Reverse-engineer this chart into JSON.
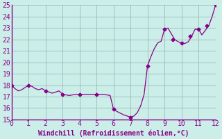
{
  "xlabel": "Windchill (Refroidissement éolien,°C)",
  "xlim": [
    0,
    12
  ],
  "ylim": [
    15,
    25
  ],
  "xticks": [
    0,
    1,
    2,
    3,
    4,
    5,
    6,
    7,
    8,
    9,
    10,
    11,
    12
  ],
  "yticks": [
    15,
    16,
    17,
    18,
    19,
    20,
    21,
    22,
    23,
    24,
    25
  ],
  "line_color": "#880088",
  "bg_color": "#cceee8",
  "grid_color": "#99bbbb",
  "axis_color": "#880088",
  "x": [
    0.0,
    0.2,
    0.4,
    0.6,
    0.8,
    1.0,
    1.2,
    1.4,
    1.6,
    1.8,
    2.0,
    2.2,
    2.4,
    2.6,
    2.8,
    3.0,
    3.2,
    3.4,
    3.6,
    3.8,
    4.0,
    4.2,
    4.4,
    4.6,
    4.8,
    5.0,
    5.2,
    5.4,
    5.6,
    5.8,
    6.0,
    6.2,
    6.4,
    6.6,
    6.8,
    7.0,
    7.2,
    7.4,
    7.6,
    7.8,
    8.0,
    8.2,
    8.4,
    8.6,
    8.8,
    9.0,
    9.2,
    9.4,
    9.6,
    9.8,
    10.0,
    10.2,
    10.4,
    10.6,
    10.8,
    11.0,
    11.2,
    11.4,
    11.6,
    11.8,
    12.0
  ],
  "y": [
    18.0,
    17.7,
    17.5,
    17.6,
    17.8,
    18.0,
    17.9,
    17.7,
    17.6,
    17.7,
    17.5,
    17.4,
    17.3,
    17.4,
    17.5,
    17.2,
    17.15,
    17.1,
    17.15,
    17.2,
    17.2,
    17.2,
    17.2,
    17.2,
    17.2,
    17.2,
    17.2,
    17.2,
    17.15,
    17.1,
    15.9,
    15.7,
    15.55,
    15.4,
    15.3,
    15.2,
    15.3,
    15.6,
    16.2,
    17.2,
    19.7,
    20.5,
    21.2,
    21.7,
    21.85,
    22.9,
    23.0,
    22.5,
    22.0,
    21.8,
    21.7,
    21.65,
    21.8,
    22.3,
    22.9,
    22.9,
    22.4,
    22.8,
    23.2,
    24.0,
    25.0
  ],
  "marker_x": [
    0.0,
    1.0,
    2.0,
    3.0,
    4.0,
    5.0,
    6.0,
    7.0,
    8.0,
    9.0,
    9.5,
    10.0,
    10.5,
    11.0,
    11.5,
    12.0
  ],
  "marker_y": [
    18.0,
    18.0,
    17.5,
    17.2,
    17.2,
    17.2,
    15.9,
    15.2,
    19.7,
    22.9,
    22.0,
    21.7,
    22.3,
    22.9,
    23.2,
    25.0
  ]
}
